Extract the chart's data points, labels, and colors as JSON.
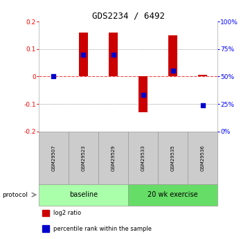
{
  "title": "GDS2234 / 6492",
  "samples": [
    "GSM29507",
    "GSM29523",
    "GSM29529",
    "GSM29533",
    "GSM29535",
    "GSM29536"
  ],
  "log2_ratios": [
    0.0,
    0.16,
    0.16,
    -0.13,
    0.15,
    0.005
  ],
  "pct_ranks": [
    0.5,
    0.7,
    0.7,
    0.33,
    0.55,
    0.24
  ],
  "bar_color": "#CC0000",
  "dot_color": "#0000CC",
  "zero_line_color": "#FF4444",
  "grid_color": "#555555",
  "ylim": [
    -0.2,
    0.2
  ],
  "yticks": [
    -0.2,
    -0.1,
    0.0,
    0.1,
    0.2
  ],
  "pct_ticks": [
    0,
    25,
    50,
    75,
    100
  ],
  "groups": [
    {
      "label": "baseline",
      "start": 0,
      "end": 3,
      "color": "#AAFFAA"
    },
    {
      "label": "20 wk exercise",
      "start": 3,
      "end": 6,
      "color": "#66DD66"
    }
  ],
  "legend_items": [
    {
      "label": "log2 ratio",
      "color": "#CC0000"
    },
    {
      "label": "percentile rank within the sample",
      "color": "#0000CC"
    }
  ],
  "protocol_label": "protocol",
  "bar_width": 0.32,
  "dot_size": 18
}
